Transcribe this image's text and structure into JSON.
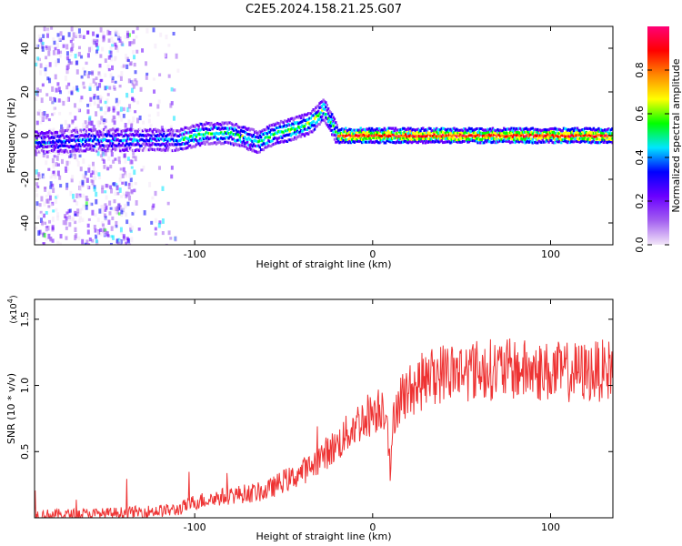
{
  "title": "C2E5.2024.158.21.25.G07",
  "chart_data": [
    {
      "type": "heatmap",
      "xlabel": "Height of straight line (km)",
      "ylabel": "Frequency (Hz)",
      "xlim": [
        -190,
        135
      ],
      "ylim": [
        -50,
        50
      ],
      "x_ticks": [
        -100,
        0,
        100
      ],
      "x_tick_labels": [
        "-100",
        "0",
        "100"
      ],
      "y_ticks": [
        -40,
        -20,
        0,
        20,
        40
      ],
      "y_tick_labels": [
        "-40",
        "-20",
        "0",
        "20",
        "40"
      ],
      "grid": false,
      "colorbar": {
        "label": "Normalized spectral amplitude",
        "range": [
          0,
          1
        ],
        "ticks": [
          0.0,
          0.2,
          0.4,
          0.6,
          0.8
        ],
        "tick_labels": [
          "0.0",
          "0.2",
          "0.4",
          "0.6",
          "0.8"
        ],
        "colormap": [
          "#f2e6f8",
          "#a35ff0",
          "#6a00ff",
          "#0000ff",
          "#00e5ff",
          "#00ff00",
          "#ffff00",
          "#ff8800",
          "#ff0000",
          "#ff0077"
        ]
      },
      "ridge": {
        "x": [
          -190,
          -150,
          -110,
          -95,
          -80,
          -65,
          -55,
          -45,
          -35,
          -28,
          -20,
          0,
          50,
          100,
          135
        ],
        "y": [
          -3,
          -2,
          -2,
          1,
          1,
          -3,
          1,
          3,
          6,
          12,
          0,
          0,
          0,
          0,
          0
        ]
      },
      "scatter_region": {
        "x": [
          -190,
          -110
        ],
        "y": [
          -50,
          50
        ]
      }
    },
    {
      "type": "line",
      "xlabel": "Height of straight line (km)",
      "ylabel": "SNR (10 * v/v)",
      "y_scale_label": "(x10",
      "y_scale_exp": "4",
      "y_scale_close": ")",
      "xlim": [
        -190,
        135
      ],
      "ylim": [
        0,
        1.65
      ],
      "x_ticks": [
        -100,
        0,
        100
      ],
      "x_tick_labels": [
        "-100",
        "0",
        "100"
      ],
      "y_ticks": [
        0.5,
        1.0,
        1.5
      ],
      "y_tick_labels": [
        "0.5",
        "1.0",
        "1.5"
      ],
      "grid": false,
      "color": "#ee3333",
      "series": [
        {
          "x": [
            -190,
            -150,
            -110,
            -100,
            -80,
            -60,
            -50,
            -45,
            -40,
            -35,
            -30,
            -20,
            -10,
            0,
            5,
            8,
            10,
            12,
            15,
            20,
            30,
            40,
            60,
            80,
            100,
            120,
            135
          ],
          "y": [
            0.02,
            0.03,
            0.06,
            0.12,
            0.17,
            0.2,
            0.28,
            0.3,
            0.35,
            0.38,
            0.45,
            0.55,
            0.7,
            0.8,
            0.85,
            0.82,
            0.3,
            0.8,
            0.9,
            0.95,
            1.05,
            1.1,
            1.12,
            1.12,
            1.1,
            1.1,
            1.12
          ]
        }
      ]
    }
  ]
}
